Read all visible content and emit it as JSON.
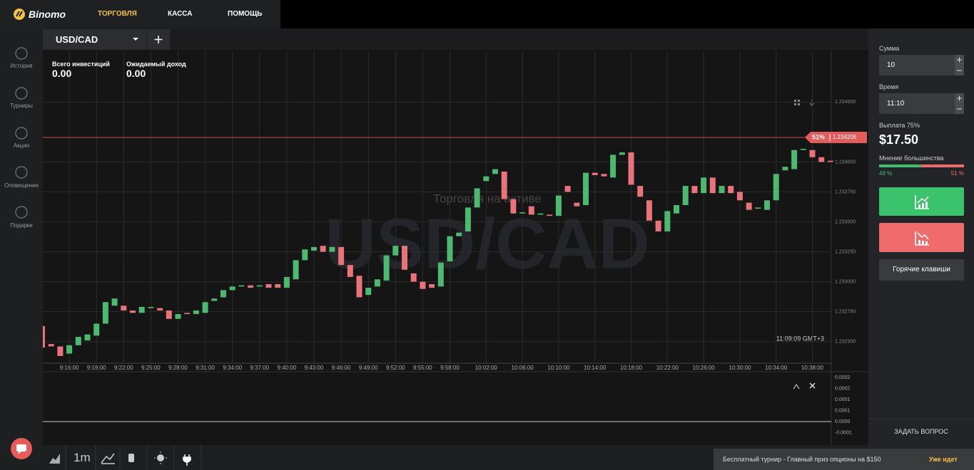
{
  "header": {
    "logo": "Binomo",
    "nav": [
      "ТОРГОВЛЯ",
      "КАССА",
      "ПОМОЩЬ"
    ]
  },
  "sidebar": [
    "История",
    "Турниры",
    "Акции",
    "Оповещения",
    "Подарки"
  ],
  "tab": {
    "asset": "USD/CAD"
  },
  "stats": [
    {
      "label": "Всего инвестиций",
      "value": "0.00"
    },
    {
      "label": "Ожидаемый доход",
      "value": "0.00"
    }
  ],
  "chart_data": {
    "type": "candlestick",
    "watermark": "USD/CAD",
    "subtitle": "Торговля на активе",
    "clock": "11:09:09 GMT+3",
    "categories": [
      null,
      null,
      null,
      "9:16:00",
      null,
      null,
      "9:19:00",
      null,
      null,
      "9:22:00",
      null,
      null,
      "9:25:00",
      null,
      null,
      "9:28:00",
      null,
      null,
      "9:31:00",
      null,
      null,
      "9:34:00",
      null,
      null,
      "9:37:00",
      null,
      null,
      "9:40:00",
      null,
      null,
      "9:43:00",
      null,
      null,
      "9:46:00",
      null,
      null,
      "9:49:00",
      null,
      null,
      "9:52:00",
      null,
      null,
      "9:55:00",
      null,
      null,
      "9:58:00",
      null,
      null,
      null,
      "10:02:00",
      null,
      null,
      null,
      "10:06:00",
      null,
      null,
      null,
      "10:10:00",
      null,
      null,
      null,
      "10:14:00",
      null,
      null,
      null,
      "10:18:00",
      null,
      null,
      null,
      "10:22:00",
      null,
      null,
      null,
      "10:26:00",
      null,
      null,
      null,
      "10:30:00",
      null,
      null,
      null,
      "10:34:00",
      null,
      null,
      null,
      "10:38:00",
      null,
      null
    ],
    "open": [
      1.23263,
      1.23248,
      1.23246,
      1.2324,
      1.23247,
      1.23251,
      1.23255,
      1.23265,
      1.2328,
      1.2328,
      1.23276,
      1.23274,
      1.23278,
      1.23278,
      1.23276,
      1.23269,
      1.23274,
      1.23273,
      1.23274,
      1.23284,
      1.23287,
      1.23293,
      1.23296,
      1.23297,
      1.23296,
      1.23298,
      1.23298,
      1.23295,
      1.23302,
      1.23318,
      1.23326,
      1.2333,
      1.23325,
      1.23329,
      1.23314,
      1.23305,
      1.23289,
      1.23296,
      1.23301,
      1.23322,
      1.2333,
      1.23307,
      1.233,
      1.23298,
      1.23296,
      1.23317,
      1.23338,
      1.23342,
      1.23362,
      1.23384,
      1.2339,
      1.23392,
      1.23369,
      1.23357,
      1.23363,
      1.23356,
      1.23356,
      1.23355,
      1.2338,
      1.23366,
      1.23364,
      1.23391,
      1.2339,
      1.23387,
      1.23406,
      1.23408,
      1.2338,
      1.23368,
      1.23351,
      1.23342,
      1.23357,
      1.23364,
      1.2338,
      1.23374,
      1.23387,
      1.23374,
      1.2338,
      1.23375,
      1.23366,
      1.23361,
      1.2336,
      1.23368,
      1.23393,
      1.23394,
      1.2341,
      1.2341,
      1.23404,
      1.23401
    ],
    "close": [
      1.23245,
      1.23246,
      1.23238,
      1.23247,
      1.23254,
      1.23256,
      1.23265,
      1.23283,
      1.23286,
      1.23276,
      1.23274,
      1.23279,
      1.23279,
      1.23276,
      1.23269,
      1.23273,
      1.23273,
      1.23276,
      1.23283,
      1.23286,
      1.23293,
      1.23296,
      1.23297,
      1.23295,
      1.23297,
      1.23295,
      1.23295,
      1.23304,
      1.23318,
      1.23327,
      1.23329,
      1.23325,
      1.23329,
      1.23314,
      1.23304,
      1.23287,
      1.23295,
      1.23302,
      1.23322,
      1.2333,
      1.2331,
      1.233,
      1.23294,
      1.23295,
      1.23316,
      1.23338,
      1.23341,
      1.23362,
      1.23378,
      1.23388,
      1.23394,
      1.23369,
      1.23357,
      1.23358,
      1.23356,
      1.23357,
      1.23355,
      1.23372,
      1.23375,
      1.23363,
      1.23391,
      1.23389,
      1.23388,
      1.23406,
      1.23408,
      1.23381,
      1.23371,
      1.23351,
      1.23342,
      1.23359,
      1.23364,
      1.2338,
      1.23374,
      1.23387,
      1.23374,
      1.2338,
      1.23374,
      1.23368,
      1.2336,
      1.23362,
      1.23368,
      1.2339,
      1.23396,
      1.2341,
      1.23411,
      1.23404,
      1.234,
      1.234
    ],
    "up_color": "#4cb870",
    "down_color": "#e8737a",
    "ylim": [
      1.23232,
      1.23452
    ],
    "yticks": [
      {
        "value": 1.2325,
        "label": "1.232500"
      },
      {
        "value": 1.23275,
        "label": "1.232750"
      },
      {
        "value": 1.233,
        "label": "1.233000"
      },
      {
        "value": 1.23325,
        "label": "1.233250"
      },
      {
        "value": 1.2335,
        "label": "1.233500"
      },
      {
        "value": 1.23375,
        "label": "1.233750"
      },
      {
        "value": 1.234,
        "label": "1.234000"
      },
      {
        "value": 1.2345,
        "label": "1.234500"
      }
    ],
    "grid": true,
    "current_price": {
      "value": 1.234205,
      "label": "1.234205"
    },
    "current_percent": "51%"
  },
  "indicator": {
    "ylim": [
      -9.68e-05,
      0.000226
    ],
    "yticks": [
      {
        "value": 0.0002,
        "label": "0.0002"
      },
      {
        "value": 0.00015,
        "label": "0.0002"
      },
      {
        "value": 0.0001,
        "label": "0.0001"
      },
      {
        "value": 5e-05,
        "label": "0.0001"
      },
      {
        "value": 0,
        "label": "0.0000"
      },
      {
        "value": -5e-05,
        "label": "-0.0001"
      }
    ]
  },
  "panel": {
    "amount_label": "Сумма",
    "amount": "10",
    "time_label": "Время",
    "time": "11:10",
    "payout_label": "Выплата 75%",
    "payout": "$17.50",
    "majority_label": "Мнение большинства",
    "majority": [
      {
        "value": 49,
        "label": "49 %"
      },
      {
        "value": 51,
        "label": "51 %"
      }
    ],
    "hotkeys": "Горячие клавиши",
    "ask": "ЗАДАТЬ ВОПРОС"
  },
  "toolbar": {
    "timeframe": "1m"
  },
  "banner": {
    "text": "Бесплатный турнир - Главный приз опционы на $150",
    "status": "Уже идет"
  }
}
